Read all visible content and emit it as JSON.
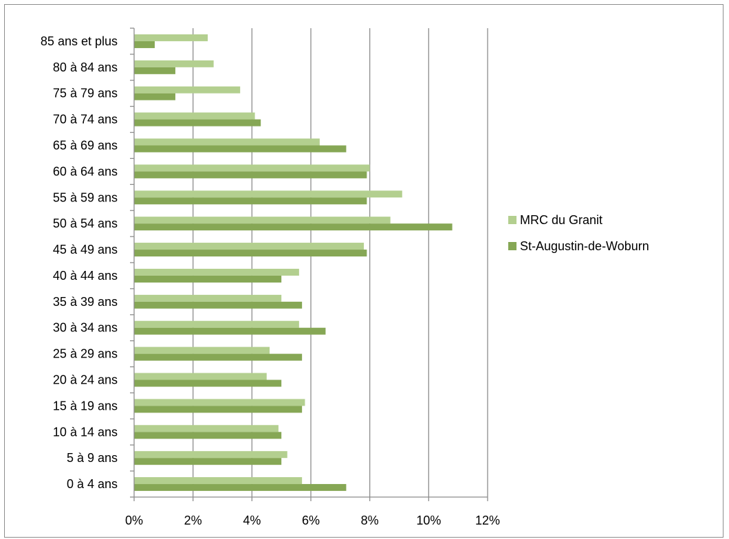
{
  "chart_data": {
    "type": "bar",
    "orientation": "horizontal",
    "title": "",
    "xlabel": "",
    "ylabel": "",
    "categories": [
      "0 à 4 ans",
      "5 à 9 ans",
      "10 à 14 ans",
      "15 à 19 ans",
      "20 à 24 ans",
      "25 à 29 ans",
      "30 à 34 ans",
      "35 à 39 ans",
      "40 à 44 ans",
      "45 à 49 ans",
      "50 à 54 ans",
      "55 à 59 ans",
      "60 à 64 ans",
      "65 à 69 ans",
      "70 à 74 ans",
      "75 à 79 ans",
      "80 à 84 ans",
      "85 ans et plus"
    ],
    "series": [
      {
        "name": "MRC du Granit",
        "color": "#b3cf8f",
        "values": [
          5.7,
          5.2,
          4.9,
          5.8,
          4.5,
          4.6,
          5.6,
          5.0,
          5.6,
          7.8,
          8.7,
          9.1,
          8.0,
          6.3,
          4.1,
          3.6,
          2.7,
          2.5
        ]
      },
      {
        "name": "St-Augustin-de-Woburn",
        "color": "#86a755",
        "values": [
          7.2,
          5.0,
          5.0,
          5.7,
          5.0,
          5.7,
          6.5,
          5.7,
          5.0,
          7.9,
          10.8,
          7.9,
          7.9,
          7.2,
          4.3,
          1.4,
          1.4,
          0.7
        ]
      }
    ],
    "x_ticks": [
      "0%",
      "2%",
      "4%",
      "6%",
      "8%",
      "10%",
      "12%"
    ],
    "xlim": [
      0,
      12
    ],
    "grid": "vertical major gridlines",
    "legend_position": "right"
  }
}
